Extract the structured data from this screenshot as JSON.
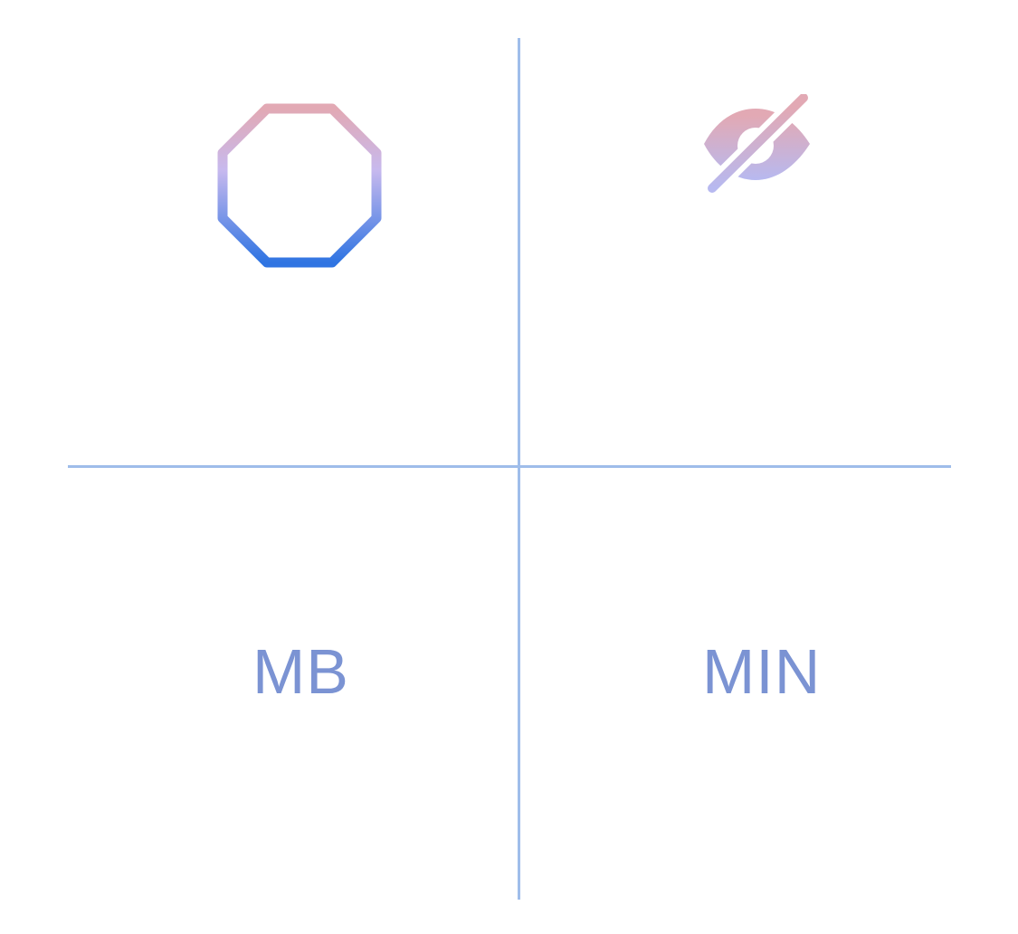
{
  "grid": {
    "line_color": "#9fbdea"
  },
  "cells": {
    "top_left": {
      "icon": "octagon-icon"
    },
    "top_right": {
      "icon": "eye-slash-icon"
    },
    "bottom_left": {
      "label": "MB"
    },
    "bottom_right": {
      "label": "MIN"
    }
  },
  "colors": {
    "gradient_top": "#e2a9b4",
    "gradient_mid": "#c7b9ee",
    "gradient_bottom": "#2f74e2",
    "label": "#7b93d3"
  }
}
